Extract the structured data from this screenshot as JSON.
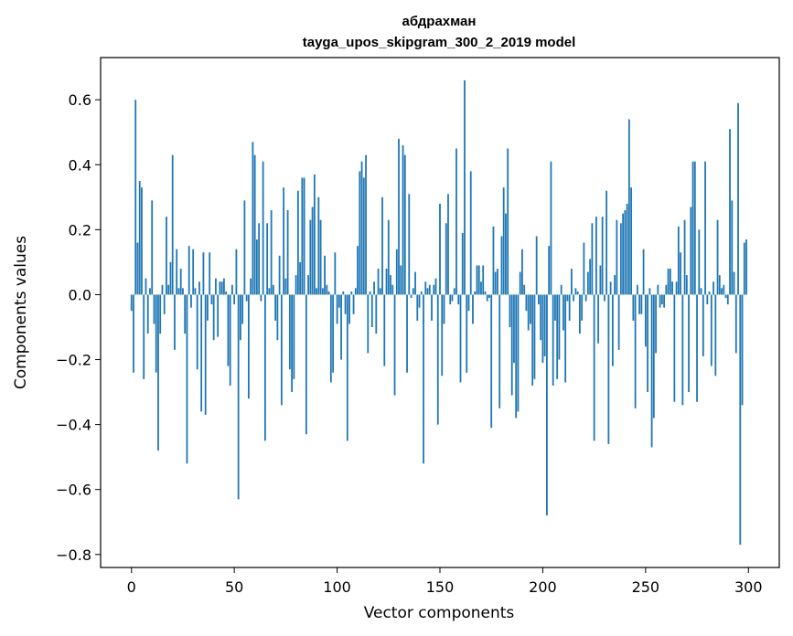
{
  "chart_data": {
    "type": "bar",
    "title": "абдрахман",
    "subtitle": "tayga_upos_skipgram_300_2_2019 model",
    "xlabel": "Vector components",
    "ylabel": "Components values",
    "xlim": [
      -15,
      315
    ],
    "ylim": [
      -0.84,
      0.73
    ],
    "xticks": [
      0,
      50,
      100,
      150,
      200,
      250,
      300
    ],
    "xtick_labels": [
      "0",
      "50",
      "100",
      "150",
      "200",
      "250",
      "300"
    ],
    "yticks": [
      -0.8,
      -0.6,
      -0.4,
      -0.2,
      0.0,
      0.2,
      0.4,
      0.6
    ],
    "ytick_labels": [
      "−0.8",
      "−0.6",
      "−0.4",
      "−0.2",
      "0.0",
      "0.2",
      "0.4",
      "0.6"
    ],
    "grid": false,
    "bar_color": "#1f77b4",
    "values": [
      -0.05,
      -0.24,
      0.6,
      0.16,
      0.35,
      0.33,
      -0.26,
      0.05,
      -0.12,
      0.02,
      0.29,
      -0.09,
      -0.24,
      -0.48,
      -0.12,
      0.03,
      -0.06,
      0.24,
      0.03,
      0.1,
      0.43,
      -0.17,
      0.14,
      0.02,
      0.08,
      0.02,
      -0.12,
      -0.52,
      0.15,
      -0.04,
      0.14,
      0.02,
      -0.23,
      0.04,
      -0.36,
      0.13,
      -0.37,
      -0.08,
      0.13,
      -0.03,
      -0.14,
      0.05,
      -0.13,
      0.04,
      0.04,
      0.05,
      0.01,
      -0.22,
      -0.28,
      0.03,
      -0.03,
      0.14,
      -0.63,
      -0.14,
      -0.09,
      0.29,
      -0.02,
      -0.32,
      0.05,
      0.47,
      0.43,
      0.17,
      0.22,
      -0.02,
      0.41,
      -0.45,
      0.22,
      0.02,
      0.26,
      0.03,
      -0.08,
      -0.14,
      0.12,
      -0.34,
      0.33,
      0.05,
      0.26,
      -0.23,
      -0.3,
      -0.26,
      0.06,
      0.32,
      0.1,
      0.36,
      0.36,
      -0.43,
      0.06,
      0.23,
      0.27,
      0.37,
      0.02,
      0.3,
      0.23,
      0.02,
      0.12,
      0.03,
      0.01,
      -0.27,
      -0.24,
      0.13,
      -0.09,
      -0.04,
      -0.2,
      0.01,
      -0.06,
      -0.45,
      -0.09,
      0.01,
      -0.06,
      0.02,
      0.15,
      0.38,
      0.41,
      0.36,
      0.43,
      -0.18,
      0.01,
      -0.1,
      0.04,
      -0.12,
      0.08,
      0.02,
      0.3,
      -0.22,
      0.08,
      0.23,
      0.06,
      0.03,
      -0.31,
      0.14,
      0.48,
      0.09,
      0.46,
      0.43,
      -0.24,
      0.31,
      -0.01,
      0.02,
      0.07,
      -0.08,
      -0.04,
      0.01,
      -0.52,
      0.04,
      0.02,
      0.03,
      -0.08,
      0.03,
      0.05,
      -0.4,
      0.28,
      -0.25,
      -0.09,
      0.22,
      0.31,
      -0.03,
      -0.02,
      0.02,
      0.45,
      -0.03,
      -0.27,
      0.19,
      0.66,
      -0.24,
      -0.05,
      0.38,
      -0.09,
      0.01,
      0.09,
      0.09,
      0.04,
      0.09,
      0.01,
      -0.02,
      -0.01,
      -0.41,
      0.21,
      0.07,
      0.08,
      -0.35,
      0.18,
      0.33,
      0.25,
      0.45,
      -0.1,
      -0.31,
      -0.21,
      -0.38,
      -0.36,
      0.07,
      0.14,
      0.03,
      -0.05,
      -0.11,
      -0.09,
      -0.28,
      -0.26,
      0.18,
      -0.03,
      -0.14,
      -0.21,
      -0.19,
      -0.68,
      0.15,
      0.41,
      -0.28,
      -0.08,
      -0.26,
      -0.2,
      0.03,
      -0.11,
      -0.27,
      -0.02,
      -0.08,
      0.08,
      -0.02,
      0.02,
      0.01,
      -0.12,
      -0.08,
      0.16,
      -0.02,
      0.07,
      0.11,
      0.22,
      -0.45,
      0.24,
      -0.15,
      0.09,
      0.24,
      -0.02,
      0.32,
      -0.46,
      0.04,
      -0.22,
      0.06,
      0.23,
      -0.17,
      0.22,
      0.25,
      0.26,
      0.28,
      0.54,
      0.33,
      -0.08,
      -0.35,
      0.03,
      -0.06,
      -0.06,
      0.14,
      -0.16,
      -0.3,
      0.02,
      -0.47,
      -0.38,
      -0.18,
      0.03,
      -0.04,
      -0.03,
      -0.04,
      0.03,
      0.08,
      0.08,
      0.04,
      -0.33,
      0.04,
      0.21,
      0.13,
      -0.34,
      0.23,
      0.06,
      -0.3,
      0.27,
      0.41,
      0.41,
      -0.33,
      0.2,
      0.02,
      -0.19,
      0.41,
      -0.03,
      0.01,
      -0.22,
      0.04,
      -0.25,
      0.23,
      0.06,
      0.02,
      0.03,
      -0.01,
      -0.03,
      0.51,
      0.29,
      0.07,
      -0.18,
      0.59,
      -0.77,
      -0.34,
      0.16,
      0.17
    ]
  }
}
